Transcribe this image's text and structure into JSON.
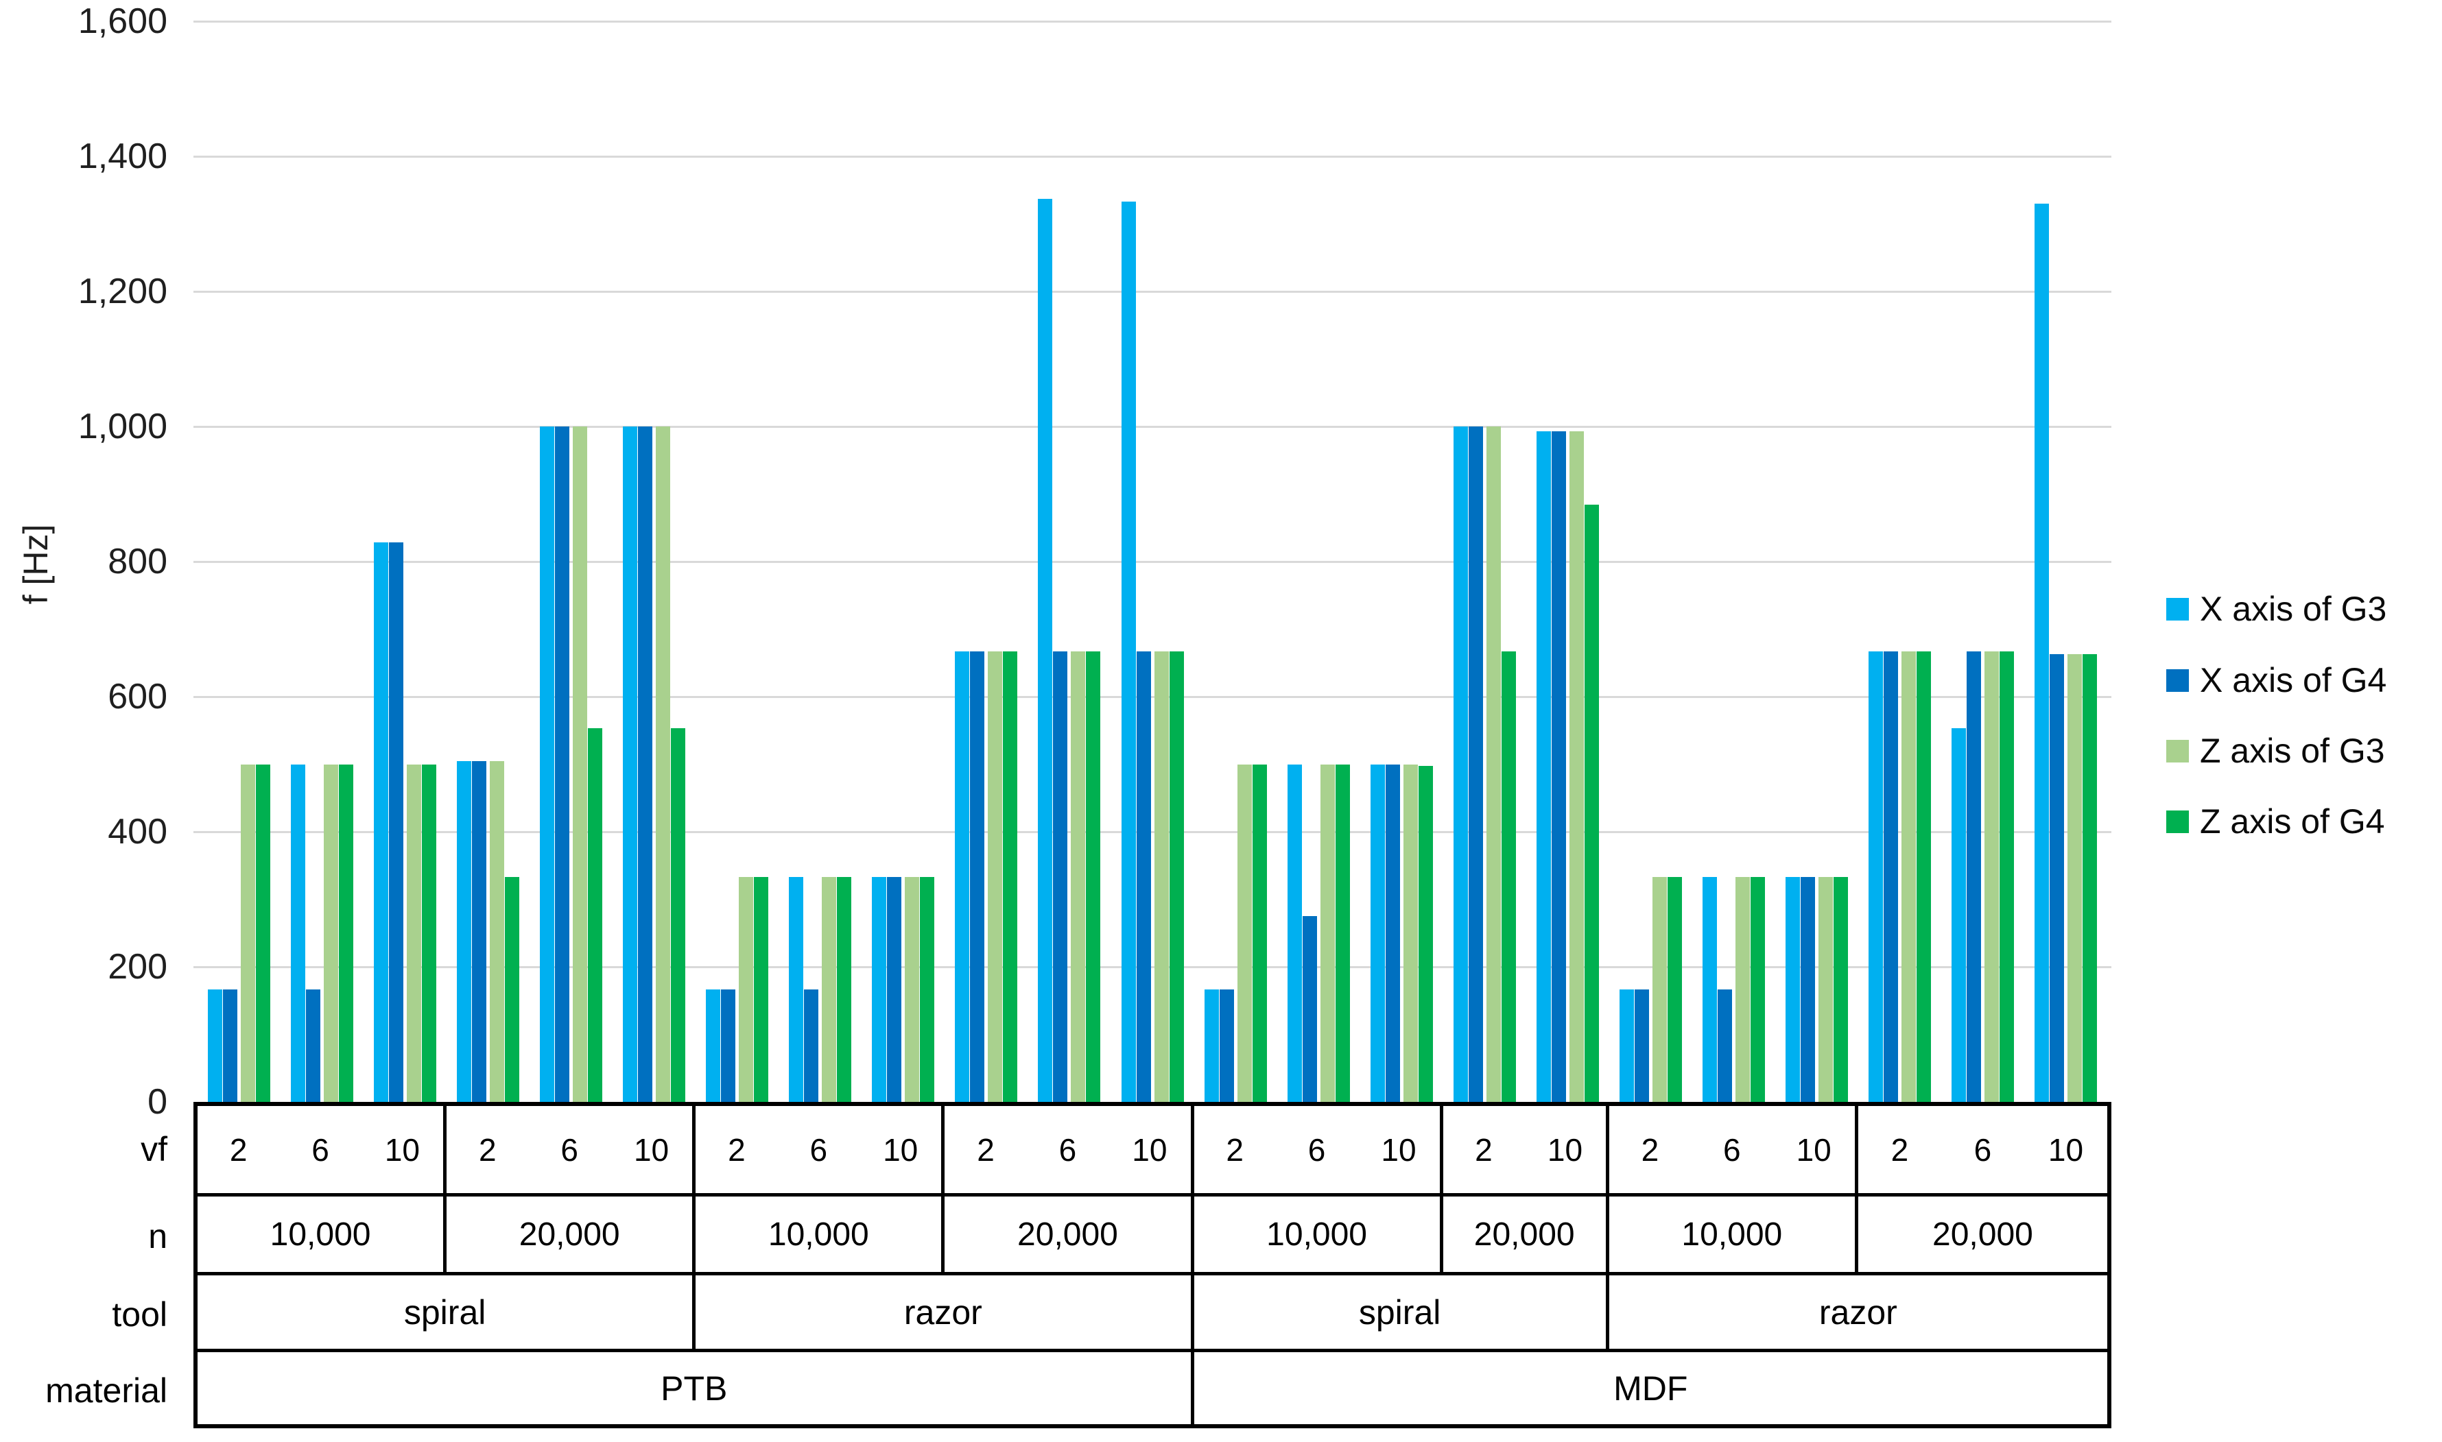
{
  "chart_data": {
    "type": "bar",
    "title": "",
    "ylabel": "f [Hz]",
    "xlabel": "",
    "ylim": [
      0,
      1600
    ],
    "yticks": [
      0,
      200,
      400,
      600,
      800,
      1000,
      1200,
      1400,
      1600
    ],
    "grid": true,
    "legend_position": "right",
    "x_hierarchy_labels": {
      "vf": "vf",
      "n": "n",
      "tool": "tool",
      "material": "material"
    },
    "series": [
      {
        "name": "X axis of G3",
        "color": "#00B0F0"
      },
      {
        "name": "X axis of G4",
        "color": "#0070C0"
      },
      {
        "name": "Z axis of G3",
        "color": "#A9D18E"
      },
      {
        "name": "Z axis of G4",
        "color": "#00B050"
      }
    ],
    "groups": [
      {
        "material": "PTB",
        "tool": "spiral",
        "n": "10,000",
        "vf": "2",
        "values": [
          167,
          167,
          500,
          500
        ]
      },
      {
        "material": "PTB",
        "tool": "spiral",
        "n": "10,000",
        "vf": "6",
        "values": [
          500,
          167,
          500,
          500
        ]
      },
      {
        "material": "PTB",
        "tool": "spiral",
        "n": "10,000",
        "vf": "10",
        "values": [
          828,
          828,
          500,
          500
        ]
      },
      {
        "material": "PTB",
        "tool": "spiral",
        "n": "20,000",
        "vf": "2",
        "values": [
          505,
          505,
          505,
          333
        ]
      },
      {
        "material": "PTB",
        "tool": "spiral",
        "n": "20,000",
        "vf": "6",
        "values": [
          1000,
          1000,
          1000,
          553
        ]
      },
      {
        "material": "PTB",
        "tool": "spiral",
        "n": "20,000",
        "vf": "10",
        "values": [
          1000,
          1000,
          1000,
          553
        ]
      },
      {
        "material": "PTB",
        "tool": "razor",
        "n": "10,000",
        "vf": "2",
        "values": [
          167,
          167,
          333,
          333
        ]
      },
      {
        "material": "PTB",
        "tool": "razor",
        "n": "10,000",
        "vf": "6",
        "values": [
          333,
          167,
          333,
          333
        ]
      },
      {
        "material": "PTB",
        "tool": "razor",
        "n": "10,000",
        "vf": "10",
        "values": [
          333,
          333,
          333,
          333
        ]
      },
      {
        "material": "PTB",
        "tool": "razor",
        "n": "20,000",
        "vf": "2",
        "values": [
          667,
          667,
          667,
          667
        ]
      },
      {
        "material": "PTB",
        "tool": "razor",
        "n": "20,000",
        "vf": "6",
        "values": [
          1337,
          667,
          667,
          667
        ]
      },
      {
        "material": "PTB",
        "tool": "razor",
        "n": "20,000",
        "vf": "10",
        "values": [
          1333,
          667,
          667,
          667
        ]
      },
      {
        "material": "MDF",
        "tool": "spiral",
        "n": "10,000",
        "vf": "2",
        "values": [
          167,
          167,
          500,
          500
        ]
      },
      {
        "material": "MDF",
        "tool": "spiral",
        "n": "10,000",
        "vf": "6",
        "values": [
          500,
          275,
          500,
          500
        ]
      },
      {
        "material": "MDF",
        "tool": "spiral",
        "n": "10,000",
        "vf": "10",
        "values": [
          500,
          500,
          500,
          497
        ]
      },
      {
        "material": "MDF",
        "tool": "spiral",
        "n": "20,000",
        "vf": "2",
        "values": [
          1000,
          1000,
          1000,
          667
        ]
      },
      {
        "material": "MDF",
        "tool": "spiral",
        "n": "20,000",
        "vf": "10",
        "values": [
          993,
          993,
          993,
          884
        ]
      },
      {
        "material": "MDF",
        "tool": "razor",
        "n": "10,000",
        "vf": "2",
        "values": [
          167,
          167,
          333,
          333
        ]
      },
      {
        "material": "MDF",
        "tool": "razor",
        "n": "10,000",
        "vf": "6",
        "values": [
          333,
          167,
          333,
          333
        ]
      },
      {
        "material": "MDF",
        "tool": "razor",
        "n": "10,000",
        "vf": "10",
        "values": [
          333,
          333,
          333,
          333
        ]
      },
      {
        "material": "MDF",
        "tool": "razor",
        "n": "20,000",
        "vf": "2",
        "values": [
          667,
          667,
          667,
          667
        ]
      },
      {
        "material": "MDF",
        "tool": "razor",
        "n": "20,000",
        "vf": "6",
        "values": [
          553,
          667,
          667,
          667
        ]
      },
      {
        "material": "MDF",
        "tool": "razor",
        "n": "20,000",
        "vf": "10",
        "values": [
          1330,
          663,
          663,
          663
        ]
      }
    ]
  }
}
